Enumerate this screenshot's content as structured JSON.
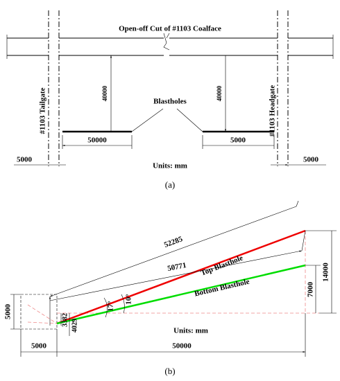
{
  "panel_a": {
    "title": "Open-off Cut of #1103 Coalface",
    "tailgate": "#1103 Tailgate",
    "headgate": "#1103 Headgate",
    "left_height": "40000",
    "right_height": "40000",
    "blastholes": "Blastholes",
    "left_length": "50000",
    "right_length": "5000",
    "tailgate_width": "5000",
    "headgate_width": "5000",
    "units": "Units: mm",
    "caption": "(a)"
  },
  "panel_b": {
    "top_length": "52285",
    "bottom_length": "50771",
    "top_blasthole": "Top Blasthole",
    "bottom_blasthole": "Bottom Blasthole",
    "top_rise": "14000",
    "bottom_rise": "7000",
    "top_angle": "17°",
    "bottom_angle": "10°",
    "units": "Units: mm",
    "box_height": "5000",
    "top_offset": "3382",
    "bottom_offset": "4029",
    "box_width": "5000",
    "horizontal_length": "50000",
    "caption": "(b)"
  }
}
